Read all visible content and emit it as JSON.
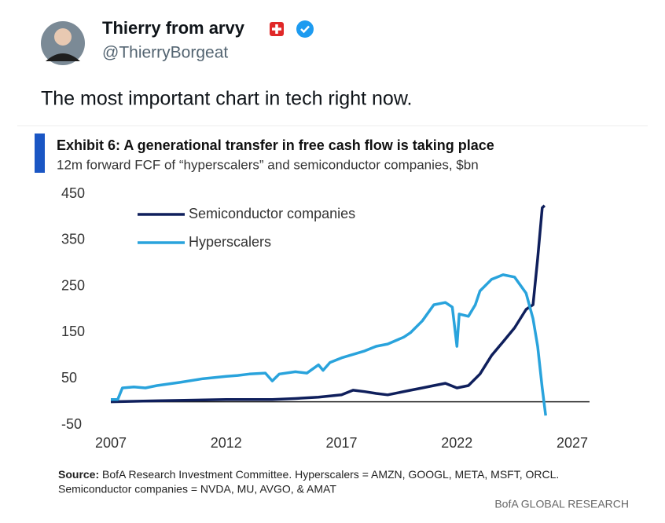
{
  "tweet": {
    "name": "Thierry from arvy",
    "handle": "@ThierryBorgeat",
    "text": "The most important chart in tech right now."
  },
  "chart_data": {
    "type": "line",
    "title": "Exhibit 6: A generational transfer in free cash flow is taking place",
    "subtitle": "12m forward FCF of “hyperscalers” and semiconductor companies, $bn",
    "xlim": [
      2007,
      2027
    ],
    "xticks": [
      2007,
      2012,
      2017,
      2022,
      2027
    ],
    "ylim": [
      -50,
      450
    ],
    "yticks": [
      -50,
      50,
      150,
      250,
      350,
      450
    ],
    "legend": "top-left",
    "series": [
      {
        "name": "Semiconductor companies",
        "color": "#0f1f5c",
        "x": [
          2007,
          2009,
          2012,
          2014,
          2015,
          2016,
          2017,
          2017.5,
          2018,
          2018.5,
          2019,
          2020,
          2020.5,
          2021,
          2021.5,
          2022,
          2022.5,
          2023,
          2023.5,
          2024,
          2024.5,
          2025,
          2025.3,
          2025.5,
          2025.7,
          2025.8
        ],
        "values": [
          0,
          2,
          5,
          5,
          7,
          10,
          15,
          25,
          22,
          18,
          15,
          25,
          30,
          35,
          40,
          30,
          35,
          60,
          100,
          130,
          160,
          200,
          210,
          310,
          420,
          425
        ]
      },
      {
        "name": "Hyperscalers",
        "color": "#29a3dc",
        "x": [
          2007,
          2007.3,
          2007.5,
          2008,
          2008.5,
          2009,
          2010,
          2011,
          2012,
          2012.5,
          2013,
          2013.7,
          2014,
          2014.3,
          2015,
          2015.5,
          2016,
          2016.2,
          2016.5,
          2017,
          2018,
          2018.5,
          2019,
          2019.7,
          2020,
          2020.5,
          2021,
          2021.5,
          2021.8,
          2022,
          2022.1,
          2022.5,
          2022.8,
          2023,
          2023.5,
          2024,
          2024.5,
          2025,
          2025.3,
          2025.5,
          2025.7,
          2025.85
        ],
        "values": [
          5,
          5,
          30,
          32,
          30,
          35,
          42,
          50,
          55,
          57,
          60,
          62,
          45,
          60,
          65,
          62,
          80,
          68,
          85,
          95,
          110,
          120,
          125,
          140,
          150,
          175,
          210,
          215,
          205,
          120,
          190,
          185,
          210,
          240,
          265,
          275,
          270,
          235,
          180,
          120,
          30,
          -30
        ]
      }
    ],
    "source_label": "Source:",
    "source": "BofA Research Investment Committee. Hyperscalers = AMZN, GOOGL, META, MSFT, ORCL.",
    "source_line2": "Semiconductor companies = NVDA, MU, AVGO, & AMAT",
    "credit": "BofA GLOBAL RESEARCH"
  }
}
